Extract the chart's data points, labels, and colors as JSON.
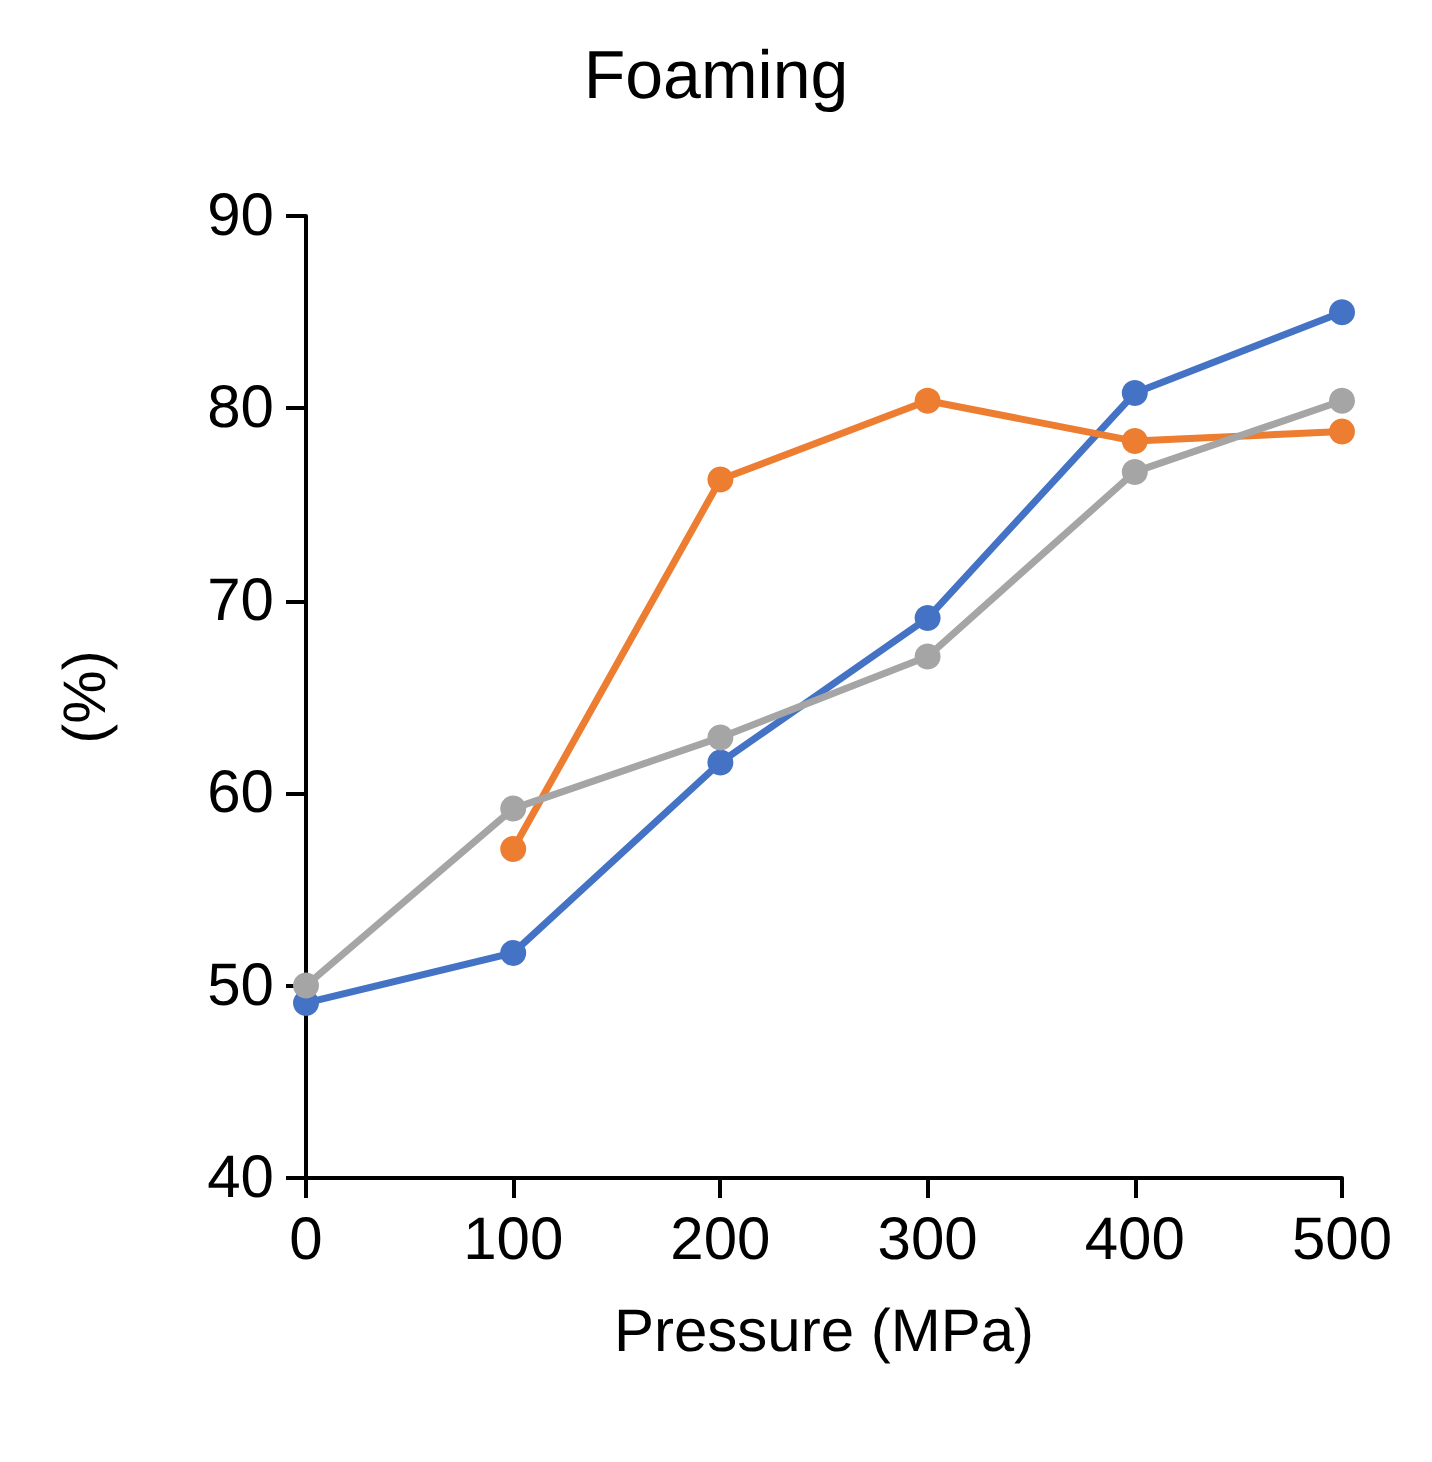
{
  "chart_data": {
    "type": "line",
    "title": "Foaming",
    "xlabel": "Pressure (MPa)",
    "ylabel": "(%)",
    "x": [
      0,
      100,
      200,
      300,
      400,
      500
    ],
    "series": [
      {
        "color": "#4472c4",
        "values": [
          49.1,
          51.7,
          61.6,
          69.1,
          80.8,
          85.0
        ]
      },
      {
        "color": "#ed7d31",
        "values": [
          null,
          57.1,
          76.3,
          80.4,
          78.3,
          78.8
        ]
      },
      {
        "color": "#a5a5a5",
        "values": [
          50.0,
          59.2,
          62.9,
          67.1,
          76.7,
          80.4
        ]
      }
    ],
    "xlim": [
      0,
      500
    ],
    "xticks": [
      0,
      100,
      200,
      300,
      400,
      500
    ],
    "ylim": [
      40,
      90
    ],
    "yticks": [
      40,
      50,
      60,
      70,
      80,
      90
    ],
    "grid": false,
    "marker": "circle",
    "line_style": "solid"
  }
}
